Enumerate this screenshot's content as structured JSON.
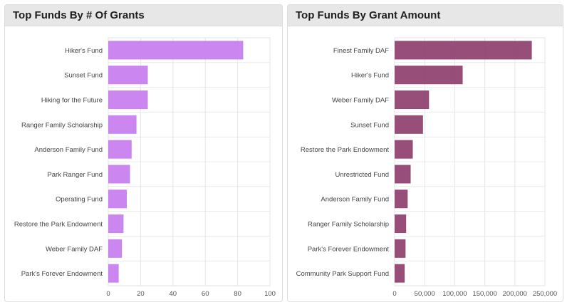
{
  "chart_data": [
    {
      "id": "grants",
      "type": "bar",
      "orientation": "horizontal",
      "title": "Top Funds By # Of Grants",
      "categories": [
        "Hiker's Fund",
        "Sunset Fund",
        "Hiking for the Future",
        "Ranger Family Scholarship",
        "Anderson Family Fund",
        "Park Ranger Fund",
        "Operating Fund",
        "Restore the Park Endowment",
        "Weber Family DAF",
        "Park's Forever Endowment"
      ],
      "values": [
        83,
        24,
        24,
        17,
        14,
        13,
        11,
        9,
        8,
        6
      ],
      "xlim": [
        0,
        100
      ],
      "ticks": [
        0,
        20,
        40,
        60,
        80,
        100
      ],
      "tick_labels": [
        "0",
        "20",
        "40",
        "60",
        "80",
        "100"
      ],
      "color": "#c77cee",
      "grid": true
    },
    {
      "id": "amount",
      "type": "bar",
      "orientation": "horizontal",
      "title": "Top Funds By Grant Amount",
      "categories": [
        "Finest Family DAF",
        "Hiker's Fund",
        "Weber Family DAF",
        "Sunset Fund",
        "Restore the Park Endowment",
        "Unrestricted Fund",
        "Anderson Family Fund",
        "Ranger Family Scholarship",
        "Park's Forever Endowment",
        "Community Park Support Fund"
      ],
      "values": [
        227000,
        112000,
        56000,
        46000,
        29000,
        25500,
        20500,
        18000,
        17000,
        15500
      ],
      "xlim": [
        0,
        250000
      ],
      "ticks": [
        0,
        50000,
        100000,
        150000,
        200000,
        250000
      ],
      "tick_labels": [
        "0",
        "50,000",
        "100,000",
        "150,000",
        "200,000",
        "250,000"
      ],
      "color": "#8e3f6e",
      "grid": true
    }
  ]
}
